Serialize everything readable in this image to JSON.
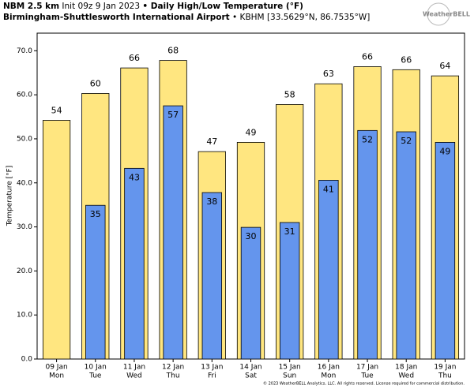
{
  "header": {
    "model": "NBM 2.5 km",
    "init": "Init 09z 9 Jan 2023",
    "product": "• Daily High/Low Temperature (°F)",
    "station": "Birmingham-Shuttlesworth International Airport",
    "station_info": "• KBHM [33.5629°N, 86.7535°W]",
    "logo": "WeatherBELL"
  },
  "footer": "© 2023 WeatherBELL Analytics, LLC. All rights reserved. License required for commercial distribution.",
  "chart_data": {
    "type": "bar",
    "y_label": "Temperature [°F]",
    "categories": [
      "09 Jan",
      "10 Jan",
      "11 Jan",
      "12 Jan",
      "13 Jan",
      "14 Jan",
      "15 Jan",
      "16 Jan",
      "17 Jan",
      "18 Jan",
      "19 Jan"
    ],
    "category_weekdays": [
      "Mon",
      "Tue",
      "Wed",
      "Thu",
      "Fri",
      "Sat",
      "Sun",
      "Mon",
      "Tue",
      "Wed",
      "Thu"
    ],
    "series": [
      {
        "name": "High",
        "color": "#ffe680",
        "values": [
          54.2,
          60.3,
          66.1,
          67.8,
          47.1,
          49.2,
          57.8,
          62.5,
          66.4,
          65.7,
          64.3
        ],
        "value_labels": [
          "54",
          "60",
          "66",
          "68",
          "47",
          "49",
          "58",
          "63",
          "66",
          "66",
          "64"
        ]
      },
      {
        "name": "Low",
        "color": "#6495ed",
        "values": [
          null,
          34.9,
          43.3,
          57.5,
          37.8,
          29.9,
          31.0,
          40.6,
          51.9,
          51.6,
          49.2
        ],
        "value_labels": [
          null,
          "35",
          "43",
          "57",
          "38",
          "30",
          "31",
          "41",
          "52",
          "52",
          "49"
        ]
      }
    ],
    "ylim": [
      0,
      74
    ],
    "yticks": [
      {
        "value": 0,
        "label": "0.0"
      },
      {
        "value": 10,
        "label": "10.0"
      },
      {
        "value": 20,
        "label": "20.0"
      },
      {
        "value": 30,
        "label": "30.0"
      },
      {
        "value": 40,
        "label": "40.0"
      },
      {
        "value": 50,
        "label": "50.0"
      },
      {
        "value": 60,
        "label": "60.0"
      },
      {
        "value": 70,
        "label": "70.0"
      }
    ]
  }
}
